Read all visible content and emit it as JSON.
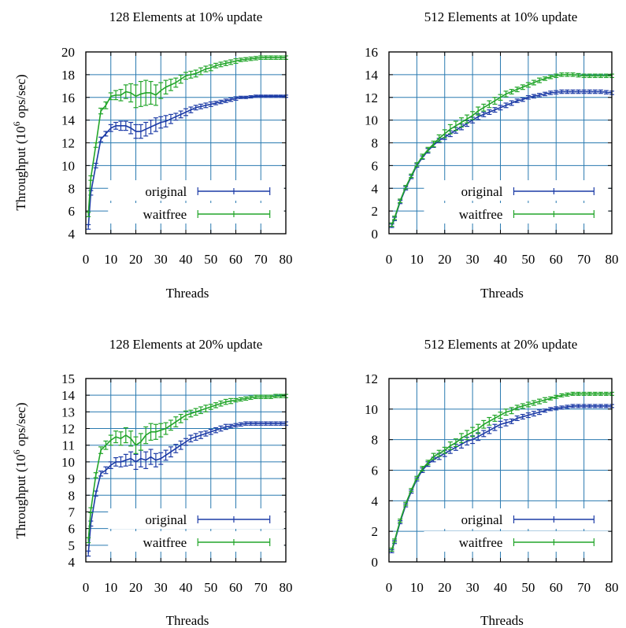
{
  "chart_data": [
    {
      "type": "line",
      "title": "128 Elements at 10% update",
      "xlabel": "Threads",
      "ylabel": "Throughput (10^6 ops/sec)",
      "xlim": [
        0,
        80
      ],
      "ylim": [
        4,
        20
      ],
      "xticks": [
        0,
        10,
        20,
        30,
        40,
        50,
        60,
        70,
        80
      ],
      "yticks": [
        4,
        6,
        8,
        10,
        12,
        14,
        16,
        18,
        20
      ],
      "grid": true,
      "legend_position": "bottom-right",
      "x": [
        1,
        2,
        4,
        6,
        8,
        10,
        12,
        14,
        16,
        18,
        20,
        22,
        24,
        26,
        28,
        30,
        32,
        34,
        36,
        38,
        40,
        42,
        44,
        46,
        48,
        50,
        52,
        54,
        56,
        58,
        60,
        62,
        64,
        66,
        68,
        70,
        72,
        74,
        76,
        78,
        80
      ],
      "series": [
        {
          "name": "original",
          "color": "#1c3ba6",
          "values": [
            4.6,
            7.6,
            10.0,
            12.3,
            12.8,
            13.3,
            13.5,
            13.5,
            13.5,
            13.3,
            13.0,
            13.0,
            13.2,
            13.4,
            13.6,
            13.8,
            13.9,
            14.1,
            14.3,
            14.5,
            14.7,
            14.9,
            15.1,
            15.2,
            15.3,
            15.4,
            15.5,
            15.6,
            15.7,
            15.8,
            15.9,
            16.0,
            16.0,
            16.05,
            16.1,
            16.1,
            16.1,
            16.1,
            16.1,
            16.1,
            16.1
          ],
          "errors": [
            0.2,
            0.2,
            0.2,
            0.2,
            0.2,
            0.3,
            0.3,
            0.4,
            0.4,
            0.5,
            0.6,
            0.6,
            0.6,
            0.6,
            0.6,
            0.5,
            0.5,
            0.4,
            0.3,
            0.3,
            0.3,
            0.25,
            0.2,
            0.2,
            0.2,
            0.2,
            0.15,
            0.15,
            0.15,
            0.15,
            0.15,
            0.1,
            0.1,
            0.1,
            0.1,
            0.1,
            0.1,
            0.1,
            0.1,
            0.1,
            0.1
          ]
        },
        {
          "name": "waitfree",
          "color": "#22a52a",
          "values": [
            5.7,
            8.9,
            11.8,
            14.8,
            15.3,
            16.1,
            16.2,
            16.2,
            16.5,
            16.4,
            16.1,
            16.3,
            16.4,
            16.4,
            16.2,
            16.6,
            16.9,
            17.1,
            17.3,
            17.6,
            17.9,
            18.0,
            18.1,
            18.3,
            18.5,
            18.6,
            18.8,
            18.9,
            19.0,
            19.1,
            19.2,
            19.3,
            19.35,
            19.4,
            19.45,
            19.5,
            19.5,
            19.5,
            19.5,
            19.5,
            19.5
          ],
          "errors": [
            0.2,
            0.2,
            0.2,
            0.25,
            0.3,
            0.3,
            0.4,
            0.5,
            0.6,
            0.8,
            1.0,
            1.1,
            1.1,
            1.0,
            0.9,
            0.7,
            0.6,
            0.5,
            0.4,
            0.35,
            0.3,
            0.3,
            0.3,
            0.3,
            0.25,
            0.25,
            0.2,
            0.2,
            0.2,
            0.2,
            0.2,
            0.15,
            0.15,
            0.15,
            0.15,
            0.15,
            0.15,
            0.15,
            0.15,
            0.15,
            0.15
          ]
        }
      ]
    },
    {
      "type": "line",
      "title": "512 Elements at 10% update",
      "xlabel": "Threads",
      "ylabel": "",
      "xlim": [
        0,
        80
      ],
      "ylim": [
        0,
        16
      ],
      "xticks": [
        0,
        10,
        20,
        30,
        40,
        50,
        60,
        70,
        80
      ],
      "yticks": [
        0,
        2,
        4,
        6,
        8,
        10,
        12,
        14,
        16
      ],
      "grid": true,
      "legend_position": "bottom-right",
      "x": [
        1,
        2,
        4,
        6,
        8,
        10,
        12,
        14,
        16,
        18,
        20,
        22,
        24,
        26,
        28,
        30,
        32,
        34,
        36,
        38,
        40,
        42,
        44,
        46,
        48,
        50,
        52,
        54,
        56,
        58,
        60,
        62,
        64,
        66,
        68,
        70,
        72,
        74,
        76,
        78,
        80
      ],
      "series": [
        {
          "name": "original",
          "color": "#1c3ba6",
          "values": [
            0.7,
            1.3,
            2.8,
            4.0,
            5.0,
            6.0,
            6.7,
            7.3,
            7.8,
            8.2,
            8.5,
            8.8,
            9.1,
            9.4,
            9.7,
            10.0,
            10.3,
            10.5,
            10.7,
            10.9,
            11.1,
            11.3,
            11.5,
            11.7,
            11.8,
            12.0,
            12.1,
            12.2,
            12.3,
            12.4,
            12.45,
            12.5,
            12.5,
            12.5,
            12.5,
            12.5,
            12.5,
            12.5,
            12.5,
            12.45,
            12.4
          ],
          "errors": [
            0.15,
            0.15,
            0.15,
            0.15,
            0.15,
            0.15,
            0.15,
            0.2,
            0.2,
            0.2,
            0.2,
            0.25,
            0.25,
            0.25,
            0.25,
            0.25,
            0.25,
            0.2,
            0.2,
            0.2,
            0.2,
            0.2,
            0.2,
            0.15,
            0.15,
            0.15,
            0.15,
            0.15,
            0.15,
            0.15,
            0.15,
            0.15,
            0.15,
            0.15,
            0.15,
            0.15,
            0.15,
            0.15,
            0.15,
            0.15,
            0.15
          ]
        },
        {
          "name": "waitfree",
          "color": "#22a52a",
          "values": [
            0.8,
            1.4,
            2.9,
            4.1,
            5.1,
            6.1,
            6.8,
            7.4,
            7.9,
            8.4,
            8.8,
            9.2,
            9.5,
            9.8,
            10.1,
            10.4,
            10.8,
            11.1,
            11.4,
            11.7,
            12.0,
            12.3,
            12.5,
            12.7,
            12.9,
            13.1,
            13.3,
            13.5,
            13.65,
            13.8,
            13.9,
            14.0,
            14.0,
            14.0,
            13.95,
            13.9,
            13.9,
            13.9,
            13.9,
            13.9,
            13.9
          ],
          "errors": [
            0.15,
            0.15,
            0.15,
            0.15,
            0.15,
            0.15,
            0.2,
            0.2,
            0.25,
            0.3,
            0.35,
            0.4,
            0.4,
            0.4,
            0.35,
            0.35,
            0.35,
            0.3,
            0.3,
            0.3,
            0.25,
            0.25,
            0.2,
            0.2,
            0.2,
            0.2,
            0.2,
            0.2,
            0.15,
            0.15,
            0.15,
            0.15,
            0.15,
            0.15,
            0.15,
            0.15,
            0.15,
            0.15,
            0.15,
            0.15,
            0.15
          ]
        }
      ]
    },
    {
      "type": "line",
      "title": "128 Elements at 20% update",
      "xlabel": "Threads",
      "ylabel": "Throughput (10^6 ops/sec)",
      "xlim": [
        0,
        80
      ],
      "ylim": [
        4,
        15
      ],
      "xticks": [
        0,
        10,
        20,
        30,
        40,
        50,
        60,
        70,
        80
      ],
      "yticks": [
        4,
        5,
        6,
        7,
        8,
        9,
        10,
        11,
        12,
        13,
        14,
        15
      ],
      "grid": true,
      "legend_position": "bottom-right",
      "x": [
        1,
        2,
        4,
        6,
        8,
        10,
        12,
        14,
        16,
        18,
        20,
        22,
        24,
        26,
        28,
        30,
        32,
        34,
        36,
        38,
        40,
        42,
        44,
        46,
        48,
        50,
        52,
        54,
        56,
        58,
        60,
        62,
        64,
        66,
        68,
        70,
        72,
        74,
        76,
        78,
        80
      ],
      "series": [
        {
          "name": "original",
          "color": "#1c3ba6",
          "values": [
            4.5,
            6.3,
            8.1,
            9.3,
            9.5,
            9.8,
            10.0,
            10.0,
            10.1,
            10.2,
            10.0,
            10.2,
            10.1,
            10.3,
            10.1,
            10.2,
            10.4,
            10.6,
            10.8,
            11.0,
            11.2,
            11.4,
            11.5,
            11.6,
            11.7,
            11.8,
            11.9,
            12.0,
            12.1,
            12.15,
            12.2,
            12.25,
            12.3,
            12.3,
            12.3,
            12.3,
            12.3,
            12.3,
            12.3,
            12.3,
            12.3
          ],
          "errors": [
            0.15,
            0.15,
            0.15,
            0.15,
            0.2,
            0.2,
            0.25,
            0.3,
            0.35,
            0.4,
            0.45,
            0.5,
            0.5,
            0.45,
            0.4,
            0.35,
            0.3,
            0.3,
            0.25,
            0.25,
            0.2,
            0.2,
            0.2,
            0.2,
            0.15,
            0.15,
            0.15,
            0.15,
            0.15,
            0.1,
            0.1,
            0.1,
            0.1,
            0.1,
            0.1,
            0.1,
            0.1,
            0.1,
            0.1,
            0.1,
            0.1
          ]
        },
        {
          "name": "waitfree",
          "color": "#22a52a",
          "values": [
            5.3,
            7.1,
            9.2,
            10.7,
            11.0,
            11.3,
            11.5,
            11.4,
            11.6,
            11.4,
            11.0,
            11.2,
            11.6,
            11.8,
            11.8,
            11.9,
            12.0,
            12.2,
            12.4,
            12.6,
            12.8,
            12.9,
            13.0,
            13.1,
            13.2,
            13.3,
            13.4,
            13.5,
            13.6,
            13.65,
            13.7,
            13.75,
            13.8,
            13.85,
            13.9,
            13.9,
            13.9,
            13.9,
            13.95,
            13.95,
            13.95
          ],
          "errors": [
            0.15,
            0.15,
            0.15,
            0.2,
            0.25,
            0.3,
            0.35,
            0.4,
            0.45,
            0.45,
            0.5,
            0.5,
            0.5,
            0.5,
            0.45,
            0.4,
            0.35,
            0.3,
            0.3,
            0.25,
            0.25,
            0.2,
            0.2,
            0.2,
            0.2,
            0.15,
            0.15,
            0.15,
            0.15,
            0.15,
            0.1,
            0.1,
            0.1,
            0.1,
            0.1,
            0.1,
            0.1,
            0.1,
            0.1,
            0.1,
            0.1
          ]
        }
      ]
    },
    {
      "type": "line",
      "title": "512 Elements at 20% update",
      "xlabel": "Threads",
      "ylabel": "",
      "xlim": [
        0,
        80
      ],
      "ylim": [
        0,
        12
      ],
      "xticks": [
        0,
        10,
        20,
        30,
        40,
        50,
        60,
        70,
        80
      ],
      "yticks": [
        0,
        2,
        4,
        6,
        8,
        10,
        12
      ],
      "grid": true,
      "legend_position": "bottom-right",
      "x": [
        1,
        2,
        4,
        6,
        8,
        10,
        12,
        14,
        16,
        18,
        20,
        22,
        24,
        26,
        28,
        30,
        32,
        34,
        36,
        38,
        40,
        42,
        44,
        46,
        48,
        50,
        52,
        54,
        56,
        58,
        60,
        62,
        64,
        66,
        68,
        70,
        72,
        74,
        76,
        78,
        80
      ],
      "series": [
        {
          "name": "original",
          "color": "#1c3ba6",
          "values": [
            0.7,
            1.3,
            2.6,
            3.7,
            4.6,
            5.4,
            6.0,
            6.4,
            6.7,
            6.9,
            7.1,
            7.3,
            7.5,
            7.7,
            7.9,
            8.0,
            8.2,
            8.4,
            8.6,
            8.8,
            9.0,
            9.1,
            9.2,
            9.4,
            9.5,
            9.6,
            9.7,
            9.8,
            9.9,
            10.0,
            10.05,
            10.1,
            10.15,
            10.2,
            10.2,
            10.2,
            10.2,
            10.2,
            10.2,
            10.2,
            10.2
          ],
          "errors": [
            0.1,
            0.1,
            0.1,
            0.1,
            0.1,
            0.1,
            0.15,
            0.15,
            0.15,
            0.2,
            0.2,
            0.2,
            0.2,
            0.25,
            0.25,
            0.25,
            0.25,
            0.2,
            0.2,
            0.2,
            0.2,
            0.2,
            0.15,
            0.15,
            0.15,
            0.15,
            0.15,
            0.15,
            0.1,
            0.1,
            0.1,
            0.1,
            0.1,
            0.1,
            0.1,
            0.1,
            0.1,
            0.1,
            0.1,
            0.1,
            0.1
          ]
        },
        {
          "name": "waitfree",
          "color": "#22a52a",
          "values": [
            0.8,
            1.4,
            2.7,
            3.8,
            4.7,
            5.5,
            6.1,
            6.5,
            6.9,
            7.1,
            7.3,
            7.6,
            7.8,
            8.1,
            8.3,
            8.5,
            8.7,
            9.0,
            9.2,
            9.4,
            9.6,
            9.8,
            9.9,
            10.1,
            10.2,
            10.3,
            10.4,
            10.5,
            10.6,
            10.7,
            10.8,
            10.9,
            10.95,
            11.0,
            11.0,
            11.0,
            11.0,
            11.0,
            11.0,
            11.0,
            11.0
          ],
          "errors": [
            0.1,
            0.1,
            0.1,
            0.1,
            0.1,
            0.1,
            0.15,
            0.15,
            0.2,
            0.2,
            0.2,
            0.25,
            0.25,
            0.3,
            0.3,
            0.3,
            0.3,
            0.25,
            0.25,
            0.2,
            0.2,
            0.2,
            0.2,
            0.15,
            0.15,
            0.15,
            0.15,
            0.15,
            0.15,
            0.1,
            0.1,
            0.1,
            0.1,
            0.1,
            0.1,
            0.1,
            0.1,
            0.1,
            0.1,
            0.1,
            0.1
          ]
        }
      ]
    }
  ]
}
